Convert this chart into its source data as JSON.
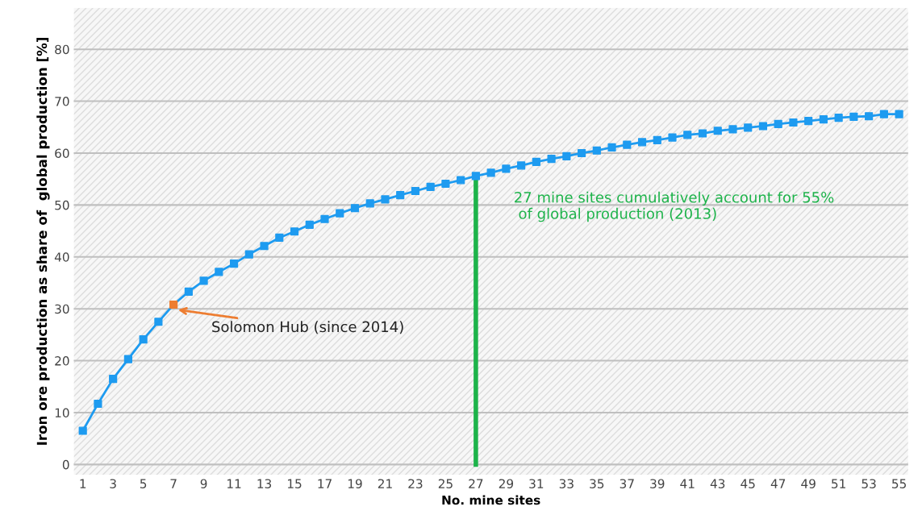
{
  "chart_data": {
    "type": "line",
    "xlabel": "No. mine sites",
    "ylabel": "Iron ore production as share of  global production [%]",
    "categories": [
      "1",
      null,
      "3",
      null,
      "5",
      null,
      "7",
      null,
      "9",
      null,
      "11",
      null,
      "13",
      null,
      "15",
      null,
      "17",
      null,
      "19",
      null,
      "21",
      null,
      "23",
      null,
      "25",
      null,
      "27",
      null,
      "29",
      null,
      "31",
      null,
      "33",
      null,
      "35",
      null,
      "37",
      null,
      "39",
      null,
      "41",
      null,
      "43",
      null,
      "45",
      null,
      "47",
      null,
      "49",
      null,
      "51",
      null,
      "53",
      null,
      "55"
    ],
    "series": [
      {
        "color": "#1e9bf0",
        "marker": "square",
        "colors": [
          "#1e9bf0",
          "#1e9bf0",
          "#1e9bf0",
          "#1e9bf0",
          "#1e9bf0",
          "#1e9bf0",
          "#ed7d31",
          "#1e9bf0",
          "#1e9bf0",
          "#1e9bf0",
          "#1e9bf0",
          "#1e9bf0",
          "#1e9bf0",
          "#1e9bf0",
          "#1e9bf0",
          "#1e9bf0",
          "#1e9bf0",
          "#1e9bf0",
          "#1e9bf0",
          "#1e9bf0",
          "#1e9bf0",
          "#1e9bf0",
          "#1e9bf0",
          "#1e9bf0",
          "#1e9bf0",
          "#1e9bf0",
          "#1e9bf0",
          "#1e9bf0",
          "#1e9bf0",
          "#1e9bf0",
          "#1e9bf0",
          "#1e9bf0",
          "#1e9bf0",
          "#1e9bf0",
          "#1e9bf0",
          "#1e9bf0",
          "#1e9bf0",
          "#1e9bf0",
          "#1e9bf0",
          "#1e9bf0",
          "#1e9bf0",
          "#1e9bf0",
          "#1e9bf0",
          "#1e9bf0",
          "#1e9bf0",
          "#1e9bf0",
          "#1e9bf0",
          "#1e9bf0",
          "#1e9bf0",
          "#1e9bf0",
          "#1e9bf0",
          "#1e9bf0",
          "#1e9bf0",
          "#1e9bf0",
          "#1e9bf0"
        ],
        "values": [
          6.5,
          11.7,
          16.5,
          20.3,
          24.1,
          27.5,
          30.8,
          33.3,
          35.4,
          37.1,
          38.7,
          40.5,
          42.1,
          43.7,
          44.9,
          46.2,
          47.3,
          48.4,
          49.4,
          50.3,
          51.1,
          51.9,
          52.7,
          53.5,
          54.1,
          54.8,
          55.6,
          56.2,
          57.0,
          57.6,
          58.3,
          58.9,
          59.4,
          60.0,
          60.5,
          61.1,
          61.6,
          62.1,
          62.5,
          63.0,
          63.5,
          63.8,
          64.3,
          64.6,
          64.9,
          65.2,
          65.6,
          65.9,
          66.2,
          66.5,
          66.8,
          67.0,
          67.1,
          67.5,
          67.5
        ]
      },
      {
        "color": "#1db34a",
        "marker": "none",
        "x": [
          "27",
          "27"
        ],
        "values": [
          0,
          55.6
        ]
      }
    ],
    "annotations": [
      {
        "text": "Solomon Hub (since 2014)",
        "x": "7",
        "y": 30.8
      },
      {
        "text": "27 mine sites cumulatively account for 55%\n of global production (2013)",
        "x": "27",
        "y": 55.6
      }
    ],
    "ylim": [
      -2,
      88
    ],
    "yticks": [
      0,
      10,
      20,
      30,
      40,
      50,
      60,
      70,
      80
    ],
    "grid": "y",
    "legend": false
  }
}
